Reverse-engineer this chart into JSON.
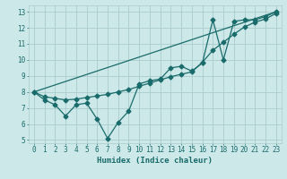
{
  "xlabel": "Humidex (Indice chaleur)",
  "bg_color": "#cce8e8",
  "grid_color": "#aacccc",
  "line_color": "#1a6b6b",
  "xlim": [
    -0.5,
    23.5
  ],
  "ylim": [
    4.8,
    13.4
  ],
  "yticks": [
    5,
    6,
    7,
    8,
    9,
    10,
    11,
    12,
    13
  ],
  "xticks": [
    0,
    1,
    2,
    3,
    4,
    5,
    6,
    7,
    8,
    9,
    10,
    11,
    12,
    13,
    14,
    15,
    16,
    17,
    18,
    19,
    20,
    21,
    22,
    23
  ],
  "line1_x": [
    0,
    1,
    2,
    3,
    4,
    5,
    6,
    7,
    8,
    9,
    10,
    11,
    12,
    13,
    14,
    15,
    16,
    17,
    18,
    19,
    20,
    21,
    22,
    23
  ],
  "line1_y": [
    8.0,
    7.5,
    7.2,
    6.5,
    7.2,
    7.3,
    6.3,
    5.1,
    6.1,
    6.8,
    8.5,
    8.7,
    8.8,
    9.5,
    9.6,
    9.3,
    9.8,
    12.5,
    10.0,
    12.4,
    12.5,
    12.5,
    12.7,
    13.0
  ],
  "line2_x": [
    0,
    1,
    2,
    3,
    4,
    5,
    6,
    7,
    8,
    9,
    10,
    11,
    12,
    13,
    14,
    15,
    16,
    17,
    18,
    19,
    20,
    21,
    22,
    23
  ],
  "line2_y": [
    8.0,
    7.7,
    7.6,
    7.5,
    7.55,
    7.65,
    7.75,
    7.85,
    8.0,
    8.15,
    8.35,
    8.55,
    8.75,
    8.95,
    9.1,
    9.25,
    9.85,
    10.6,
    11.1,
    11.6,
    12.05,
    12.35,
    12.55,
    12.9
  ],
  "line3_x": [
    0,
    23
  ],
  "line3_y": [
    8.0,
    13.0
  ],
  "marker": "D",
  "markersize": 2.5,
  "linewidth": 0.9
}
